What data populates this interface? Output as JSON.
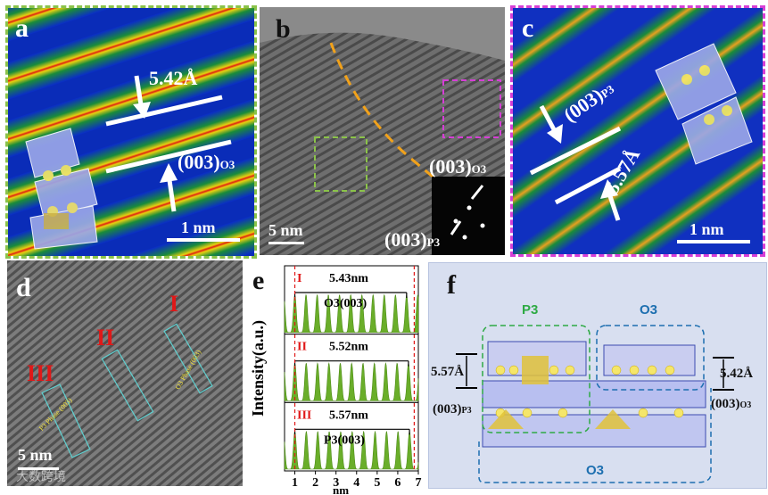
{
  "panels": {
    "a": {
      "label": "a",
      "border_color": "#8bc34a",
      "spacing": "5.42Å",
      "plane_main": "(003)",
      "plane_sub": "O3",
      "scale": "1 nm"
    },
    "b": {
      "label": "b",
      "plane_o3_main": "(003)",
      "plane_o3_sub": "O3",
      "plane_p3_main": "(003)",
      "plane_p3_sub": "P3",
      "scale": "5 nm"
    },
    "c": {
      "label": "c",
      "border_color": "#d63fd6",
      "spacing": "5.57Å",
      "plane_main": "(003)",
      "plane_sub": "P3",
      "scale": "1 nm"
    },
    "d": {
      "label": "d",
      "region_I": "I",
      "region_II": "II",
      "region_III": "III",
      "o3_phase": "O3 Phase (003)",
      "p3_phase": "P3 Phase (003)",
      "scale": "5 nm"
    },
    "e": {
      "label": "e",
      "ylabel": "Intensity(a.u.)",
      "xlabel": "nm",
      "panels": [
        {
          "roman": "I",
          "distance": "5.43nm",
          "phase": "O3(003)"
        },
        {
          "roman": "II",
          "distance": "5.52nm",
          "phase": ""
        },
        {
          "roman": "III",
          "distance": "5.57nm",
          "phase": "P3(003)"
        }
      ]
    },
    "f": {
      "label": "f",
      "p3": "P3",
      "o3_top": "O3",
      "o3_bottom": "O3",
      "spacing_left": "5.57Å",
      "spacing_right": "5.42Å",
      "plane_left_main": "(003)",
      "plane_left_sub": "P3",
      "plane_right_main": "(003)",
      "plane_right_sub": "O3"
    }
  },
  "watermark": "大数跨境",
  "chart_data": {
    "type": "line",
    "title": "",
    "xlabel": "nm",
    "ylabel": "Intensity(a.u.)",
    "xlim": [
      0.5,
      7
    ],
    "xticks": [
      1,
      2,
      3,
      4,
      5,
      6,
      7
    ],
    "series": [
      {
        "name": "I",
        "peak_spacing_nm": 0.543,
        "peak_count": 11,
        "start": 1.0
      },
      {
        "name": "II",
        "peak_spacing_nm": 0.552,
        "peak_count": 11,
        "start": 1.0
      },
      {
        "name": "III",
        "peak_spacing_nm": 0.557,
        "peak_count": 11,
        "start": 1.0
      }
    ]
  }
}
